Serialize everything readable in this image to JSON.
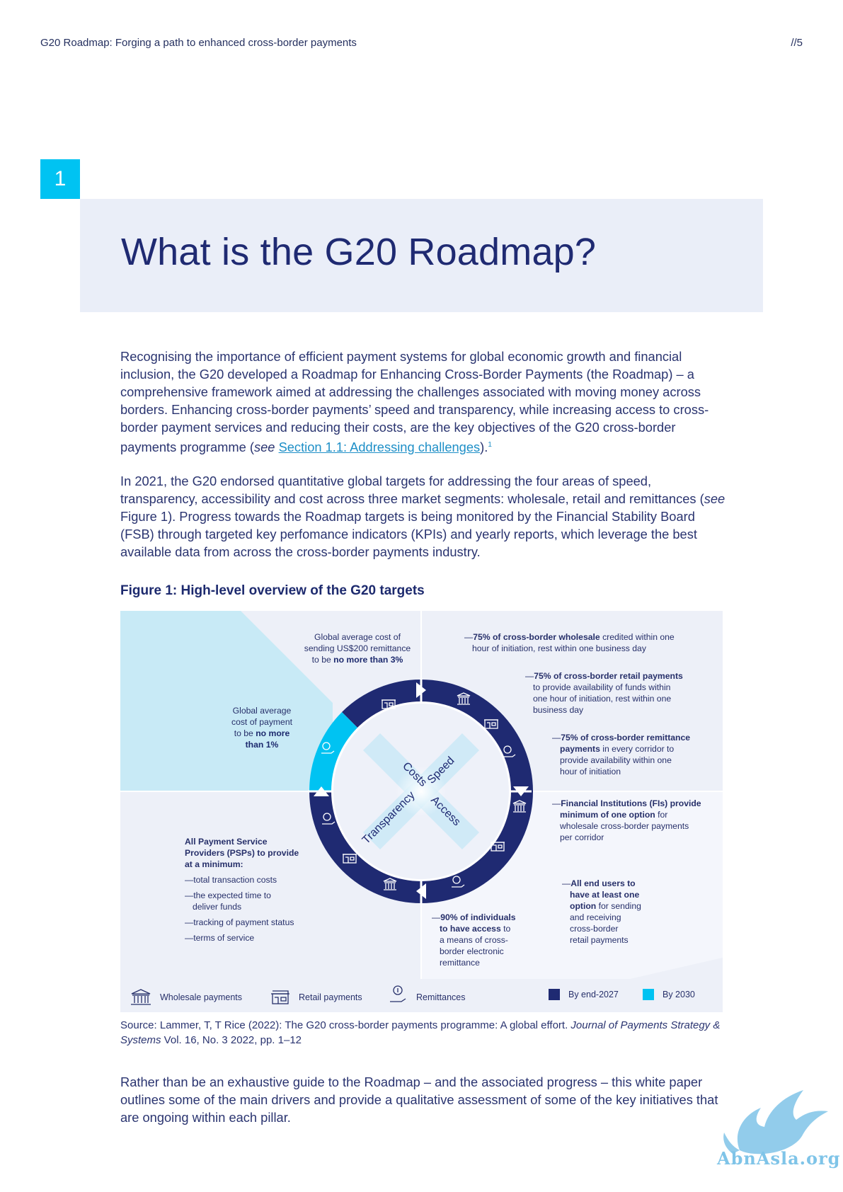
{
  "header": {
    "running_title": "G20 Roadmap: Forging a path to enhanced cross-border payments",
    "page_number": "//5"
  },
  "section": {
    "number": "1",
    "title": "What is the G20 Roadmap?"
  },
  "paragraphs": {
    "p1_before": "Recognising the importance of efficient payment systems for global economic growth and financial inclusion, the G20 developed a Roadmap for Enhancing Cross-Border Payments (the Roadmap) – a comprehensive framework aimed at addressing the challenges associated with moving money across borders. Enhancing cross-border payments’ speed and transparency, while increasing access to cross-border payment services and reducing their costs, are the key objectives of the G20 cross-border payments programme (",
    "p1_see": "see",
    "p1_link": "Section 1.1: Addressing challenges",
    "p1_after": ").",
    "p1_footnote": "1",
    "p2_before": "In 2021, the G20 endorsed quantitative global targets for addressing the four areas of speed, transparency, accessibility and cost across three market segments: wholesale, retail and remittances (",
    "p2_see": "see",
    "p2_after": " Figure 1). Progress towards the Roadmap targets is being monitored by the Financial Stability Board (FSB) through targeted key perfomance indicators (KPIs) and yearly reports, which leverage the best available data from across the cross-border payments industry.",
    "p3": "Rather than be an exhaustive guide to the Roadmap – and the associated progress – this white paper outlines some of the main drivers and provide a qualitative assessment of some of the key initiatives that are ongoing within each pillar."
  },
  "figure": {
    "title": "Figure 1: High-level overview of the G20 targets",
    "pillars": {
      "costs": "Costs",
      "speed": "Speed",
      "transparency": "Transparency",
      "access": "Access"
    },
    "costs_remittance": {
      "line1": "Global average cost of",
      "line2": "sending US$200 remittance",
      "line3a": "to be ",
      "line3b": "no more than 3%"
    },
    "costs_payment": {
      "line1": "Global average",
      "line2": "cost of payment",
      "line3a": "to be ",
      "line3b": "no more",
      "line4": "than 1%"
    },
    "speed_wholesale": {
      "bold": "75% of cross-border wholesale",
      "rest1": " credited within one",
      "line2": "hour of initiation, rest within one business day"
    },
    "speed_retail": {
      "bold": "75% of cross-border retail payments",
      "line2": "to provide availability of funds within",
      "line3": "one hour of initiation, rest within one",
      "line4": "business day"
    },
    "speed_remittance": {
      "bold1": "75% of cross-border remittance",
      "bold2": "payments",
      "rest2": " in every corridor to",
      "line3": "provide availability within one",
      "line4": "hour of initiation"
    },
    "access_wholesale": {
      "bold1": "Financial Institutions (FIs) provide",
      "bold2": "minimum of one option",
      "rest2": " for",
      "line3": "wholesale cross-border payments",
      "line4": "per corridor"
    },
    "access_retail": {
      "bold1": "All end users to",
      "bold2": "have at least one",
      "bold3": "option",
      "rest3": " for sending",
      "line4": "and receiving",
      "line5": "cross-border",
      "line6": "retail payments"
    },
    "access_remittance": {
      "bold1": "90% of individuals",
      "bold2": "to have access",
      "rest2": " to",
      "line3": "a means of cross-",
      "line4": "border electronic",
      "line5": "remittance"
    },
    "transparency": {
      "intro1": "All Payment Service",
      "intro2": "Providers (PSPs) to provide",
      "intro3": "at a minimum:",
      "item1": "total transaction costs",
      "item2a": "the expected time to",
      "item2b": "deliver funds",
      "item3": "tracking of payment status",
      "item4": "terms of service"
    },
    "legend": {
      "wholesale": "Wholesale payments",
      "retail": "Retail payments",
      "remittances": "Remittances",
      "end_2027": "By end-2027",
      "by_2030": "By 2030"
    },
    "colors": {
      "navy": "#1f2a72",
      "cyan": "#00c3f2",
      "light_cyan_panel": "#c8eaf6",
      "panel": "#edf0f8"
    }
  },
  "source": {
    "before": "Source: Lammer, T, T Rice (2022): The G20 cross-border payments programme: A global effort. ",
    "journal": "Journal of Payments Strategy & Systems",
    "after": " Vol. 16, No. 3 2022, pp. 1–12"
  },
  "watermark": {
    "text": "AbnAsla.org"
  }
}
